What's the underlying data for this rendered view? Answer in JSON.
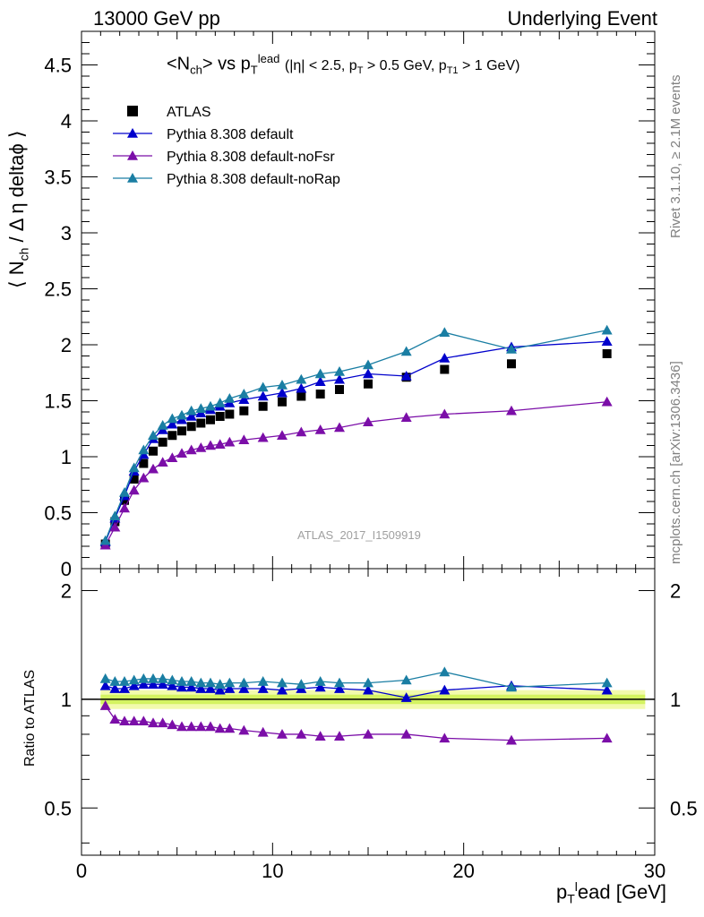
{
  "header": {
    "left": "13000 GeV pp",
    "right": "Underlying Event"
  },
  "side_labels": {
    "rivet": "Rivet 3.1.10, ≥ 2.1M events",
    "mcplots": "mcplots.cern.ch [arXiv:1306.3436]"
  },
  "title": {
    "main": "<N",
    "main_sub": "ch",
    "main_mid": "> vs p",
    "main_sub2": "T",
    "main_sup": "lead",
    "cuts_1": "(|η| < 2.5, p",
    "cuts_sub1": "T",
    "cuts_2": " > 0.5 GeV, p",
    "cuts_sub2": "T1",
    "cuts_3": " > 1 GeV)"
  },
  "analysis_label": "ATLAS_2017_I1509919",
  "axes": {
    "ylabel_main_a": "⟨ N",
    "ylabel_main_sub": "ch",
    "ylabel_main_b": "/ Δ η deltaϕ ⟩",
    "ylabel_ratio": "Ratio to ATLAS",
    "xlabel_a": "p",
    "xlabel_sub": "T",
    "xlabel_sup": "l",
    "xlabel_b": "ead [GeV]"
  },
  "chart_data": [
    {
      "type": "scatter",
      "panel": "main",
      "xlim": [
        0,
        30
      ],
      "ylim": [
        0,
        4.8
      ],
      "yticks": [
        "0",
        "0.5",
        "1",
        "1.5",
        "2",
        "2.5",
        "3",
        "3.5",
        "4",
        "4.5"
      ],
      "xticks": [
        "0",
        "10",
        "20",
        "30"
      ],
      "x": [
        1.25,
        1.75,
        2.25,
        2.75,
        3.25,
        3.75,
        4.25,
        4.75,
        5.25,
        5.75,
        6.25,
        6.75,
        7.25,
        7.75,
        8.5,
        9.5,
        10.5,
        11.5,
        12.5,
        13.5,
        15.0,
        17.0,
        19.0,
        22.5,
        27.5
      ],
      "series": [
        {
          "name": "ATLAS",
          "color": "#000000",
          "marker": "square",
          "values": [
            0.22,
            0.42,
            0.61,
            0.8,
            0.94,
            1.05,
            1.13,
            1.19,
            1.23,
            1.27,
            1.3,
            1.33,
            1.36,
            1.38,
            1.41,
            1.45,
            1.49,
            1.54,
            1.56,
            1.6,
            1.65,
            1.71,
            1.78,
            1.83,
            1.92
          ]
        },
        {
          "name": "Pythia 8.308 default",
          "color": "#0000cc",
          "marker": "triangle",
          "values": [
            0.24,
            0.45,
            0.65,
            0.87,
            1.02,
            1.16,
            1.24,
            1.29,
            1.33,
            1.36,
            1.39,
            1.42,
            1.45,
            1.48,
            1.51,
            1.54,
            1.57,
            1.61,
            1.67,
            1.69,
            1.74,
            1.72,
            1.88,
            1.98,
            2.03
          ]
        },
        {
          "name": "Pythia 8.308 default-noFsr",
          "color": "#7b0ea8",
          "marker": "triangle",
          "values": [
            0.21,
            0.37,
            0.54,
            0.7,
            0.81,
            0.89,
            0.95,
            0.99,
            1.03,
            1.06,
            1.08,
            1.1,
            1.11,
            1.13,
            1.15,
            1.17,
            1.19,
            1.22,
            1.24,
            1.26,
            1.31,
            1.35,
            1.38,
            1.41,
            1.49
          ]
        },
        {
          "name": "Pythia 8.308 default-noRap",
          "color": "#1a7ea3",
          "marker": "triangle",
          "values": [
            0.25,
            0.47,
            0.68,
            0.9,
            1.06,
            1.19,
            1.28,
            1.34,
            1.37,
            1.41,
            1.43,
            1.45,
            1.48,
            1.52,
            1.56,
            1.62,
            1.64,
            1.69,
            1.74,
            1.76,
            1.82,
            1.94,
            2.11,
            1.96,
            2.13
          ]
        }
      ]
    },
    {
      "type": "scatter",
      "panel": "ratio",
      "xlim": [
        0,
        30
      ],
      "ylim": [
        0.37,
        2.3
      ],
      "yscale": "log",
      "yticks": [
        "0.5",
        "1",
        "2"
      ],
      "x": [
        1.25,
        1.75,
        2.25,
        2.75,
        3.25,
        3.75,
        4.25,
        4.75,
        5.25,
        5.75,
        6.25,
        6.75,
        7.25,
        7.75,
        8.5,
        9.5,
        10.5,
        11.5,
        12.5,
        13.5,
        15.0,
        17.0,
        19.0,
        22.5,
        27.5
      ],
      "series": [
        {
          "name": "Pythia 8.308 default",
          "color": "#0000cc",
          "values": [
            1.09,
            1.07,
            1.07,
            1.09,
            1.1,
            1.1,
            1.1,
            1.09,
            1.08,
            1.08,
            1.07,
            1.07,
            1.06,
            1.07,
            1.07,
            1.07,
            1.06,
            1.07,
            1.08,
            1.07,
            1.06,
            1.01,
            1.06,
            1.09,
            1.06
          ]
        },
        {
          "name": "Pythia 8.308 default-noFsr",
          "color": "#7b0ea8",
          "values": [
            0.96,
            0.88,
            0.87,
            0.87,
            0.87,
            0.86,
            0.86,
            0.85,
            0.84,
            0.84,
            0.84,
            0.84,
            0.83,
            0.83,
            0.82,
            0.81,
            0.8,
            0.8,
            0.79,
            0.79,
            0.8,
            0.8,
            0.78,
            0.77,
            0.78
          ]
        },
        {
          "name": "Pythia 8.308 default-noRap",
          "color": "#1a7ea3",
          "values": [
            1.14,
            1.12,
            1.12,
            1.13,
            1.14,
            1.14,
            1.14,
            1.13,
            1.12,
            1.12,
            1.11,
            1.11,
            1.1,
            1.11,
            1.11,
            1.12,
            1.11,
            1.1,
            1.12,
            1.11,
            1.11,
            1.13,
            1.19,
            1.08,
            1.11
          ]
        }
      ],
      "band": {
        "color": "#e8f56a",
        "center": 1.0,
        "halfwidth": 0.03
      }
    }
  ]
}
